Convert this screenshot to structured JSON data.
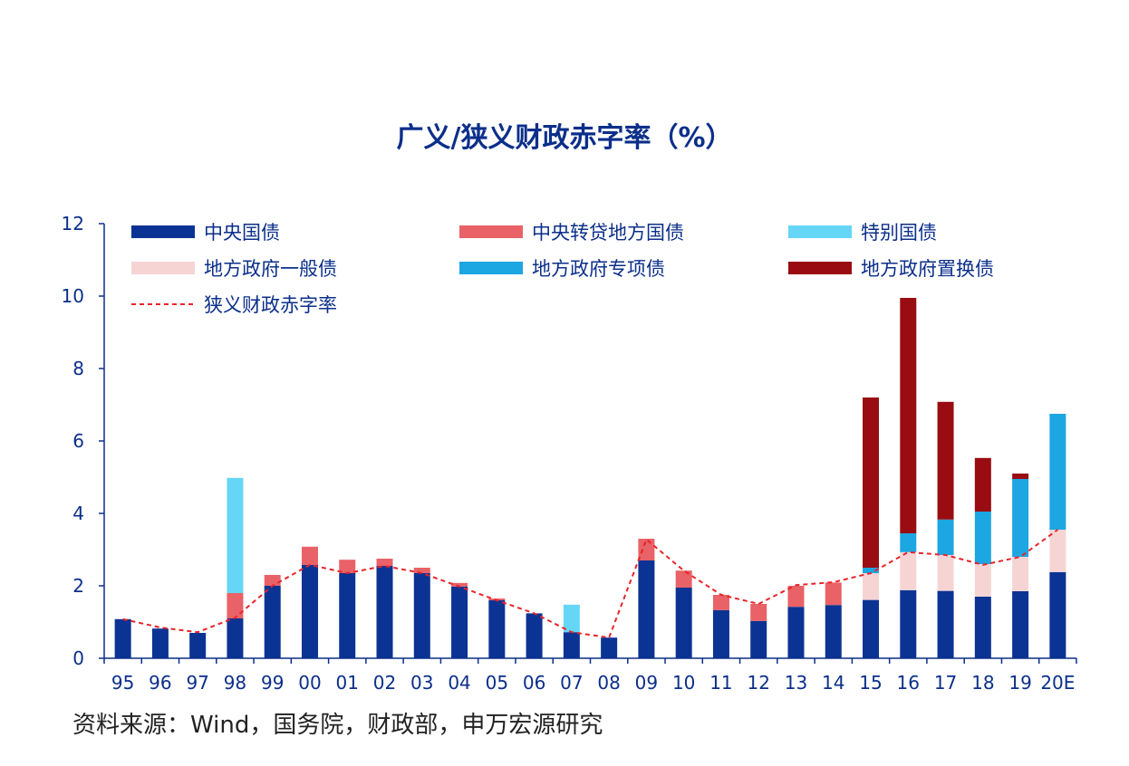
{
  "source_note": "资料来源：Wind，国务院，财政部，申万宏源研究",
  "colors": {
    "central_bond": "#0b3394",
    "central_onlend": "#e86267",
    "special_bond": "#66d6f7",
    "local_general": "#f7d4d4",
    "local_special": "#1ca6e2",
    "local_swap": "#990d12",
    "narrow_deficit": "#e82429",
    "axis": "#0b2f8a",
    "text": "#0b2f8a"
  },
  "chart_data": {
    "type": "bar",
    "stacked": true,
    "title": "广义/狭义财政赤字率（%）",
    "xlabel": "",
    "ylabel": "",
    "ylim": [
      0,
      12
    ],
    "yticks": [
      "0",
      "2",
      "4",
      "6",
      "8",
      "10",
      "12"
    ],
    "grid": false,
    "categories": [
      "95",
      "96",
      "97",
      "98",
      "99",
      "00",
      "01",
      "02",
      "03",
      "04",
      "05",
      "06",
      "07",
      "08",
      "09",
      "10",
      "11",
      "12",
      "13",
      "14",
      "15",
      "16",
      "17",
      "18",
      "19",
      "20E"
    ],
    "series": [
      {
        "name": "中央国债",
        "color_key": "central_bond",
        "values": [
          1.08,
          0.82,
          0.7,
          1.1,
          2.0,
          2.58,
          2.35,
          2.55,
          2.35,
          1.98,
          1.6,
          1.24,
          0.72,
          0.57,
          2.7,
          1.95,
          1.33,
          1.03,
          1.42,
          1.47,
          1.61,
          1.88,
          1.86,
          1.7,
          1.85,
          2.38
        ]
      },
      {
        "name": "中央转贷地方国债",
        "color_key": "central_onlend",
        "values": [
          0,
          0,
          0,
          0.7,
          0.3,
          0.5,
          0.37,
          0.2,
          0.15,
          0.1,
          0.05,
          0,
          0,
          0,
          0.6,
          0.47,
          0.42,
          0.47,
          0.58,
          0.62,
          0,
          0,
          0,
          0,
          0,
          0
        ]
      },
      {
        "name": "特别国债",
        "color_key": "special_bond",
        "values": [
          0,
          0,
          0,
          3.18,
          0,
          0,
          0,
          0,
          0,
          0,
          0,
          0,
          0.76,
          0,
          0,
          0,
          0,
          0,
          0,
          0,
          0,
          0,
          0,
          0,
          0,
          0
        ]
      },
      {
        "name": "地方政府一般债",
        "color_key": "local_general",
        "values": [
          0,
          0,
          0,
          0,
          0,
          0,
          0,
          0,
          0,
          0,
          0,
          0,
          0,
          0,
          0,
          0,
          0,
          0,
          0,
          0,
          0.74,
          1.05,
          0.99,
          0.9,
          0.95,
          1.17
        ]
      },
      {
        "name": "地方政府专项债",
        "color_key": "local_special",
        "values": [
          0,
          0,
          0,
          0,
          0,
          0,
          0,
          0,
          0,
          0,
          0,
          0,
          0,
          0,
          0,
          0,
          0,
          0,
          0,
          0,
          0.15,
          0.52,
          0.98,
          1.45,
          2.15,
          3.2
        ]
      },
      {
        "name": "地方政府置换债",
        "color_key": "local_swap",
        "values": [
          0,
          0,
          0,
          0,
          0,
          0,
          0,
          0,
          0,
          0,
          0,
          0,
          0,
          0,
          0,
          0,
          0,
          0,
          0,
          0,
          4.7,
          6.5,
          3.25,
          1.48,
          0.15,
          0
        ]
      }
    ],
    "line_series": {
      "name": "狭义财政赤字率",
      "color_key": "narrow_deficit",
      "style": "dashed",
      "values": [
        1.08,
        0.85,
        0.72,
        1.12,
        2.0,
        2.58,
        2.35,
        2.55,
        2.35,
        1.98,
        1.6,
        1.24,
        0.72,
        0.57,
        3.28,
        2.42,
        1.75,
        1.5,
        2.02,
        2.1,
        2.35,
        2.93,
        2.85,
        2.58,
        2.8,
        3.55
      ]
    },
    "legend_position": "top"
  }
}
